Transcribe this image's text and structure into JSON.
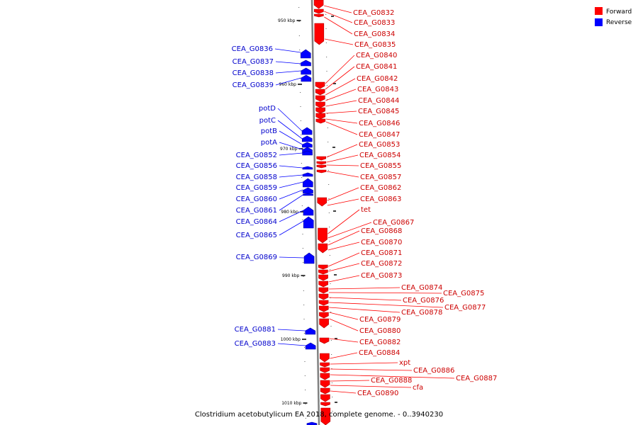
{
  "caption": "Clostridium acetobutylicum EA 2018, complete genome. - 0..3940230",
  "legend": [
    {
      "name": "Forward",
      "color": "#ff0000"
    },
    {
      "name": "Reverse",
      "color": "#0000ff"
    }
  ],
  "colors": {
    "forward": "#ff0000",
    "forward_dark": "#b00000",
    "reverse": "#0000ff",
    "reverse_dark": "#0000a0",
    "forward_label": "#cc0000",
    "reverse_label": "#0000cc",
    "axis": "#808080"
  },
  "axis_ticks": [
    {
      "kbp": 950,
      "label": "950 kbp"
    },
    {
      "kbp": 960,
      "label": "960 kbp"
    },
    {
      "kbp": 970,
      "label": "970 kbp"
    },
    {
      "kbp": 980,
      "label": "980 kbp"
    },
    {
      "kbp": 990,
      "label": "990 kbp"
    },
    {
      "kbp": 1000,
      "label": "1000 kbp"
    },
    {
      "kbp": 1010,
      "label": "1010 kbp"
    }
  ],
  "forward_genes": [
    "CEA_G0832",
    "CEA_G0833",
    "CEA_G0834",
    "CEA_G0835",
    "CEA_G0840",
    "CEA_G0841",
    "CEA_G0842",
    "CEA_G0843",
    "CEA_G0844",
    "CEA_G0845",
    "CEA_G0846",
    "CEA_G0847",
    "CEA_G0853",
    "CEA_G0854",
    "CEA_G0855",
    "CEA_G0857",
    "CEA_G0862",
    "CEA_G0863",
    "tet",
    "CEA_G0867",
    "CEA_G0868",
    "CEA_G0870",
    "CEA_G0871",
    "CEA_G0872",
    "CEA_G0873",
    "CEA_G0874",
    "CEA_G0875",
    "CEA_G0876",
    "CEA_G0877",
    "CEA_G0878",
    "CEA_G0879",
    "CEA_G0880",
    "CEA_G0882",
    "CEA_G0884",
    "xpt",
    "CEA_G0886",
    "CEA_G0887",
    "CEA_G0888",
    "cfa",
    "CEA_G0890"
  ],
  "reverse_genes": [
    "CEA_G0836",
    "CEA_G0837",
    "CEA_G0838",
    "CEA_G0839",
    "potD",
    "potC",
    "potB",
    "potA",
    "CEA_G0852",
    "CEA_G0856",
    "CEA_G0858",
    "CEA_G0859",
    "CEA_G0860",
    "CEA_G0861",
    "CEA_G0864",
    "CEA_G0865",
    "CEA_G0869",
    "CEA_G0881",
    "CEA_G0883"
  ]
}
